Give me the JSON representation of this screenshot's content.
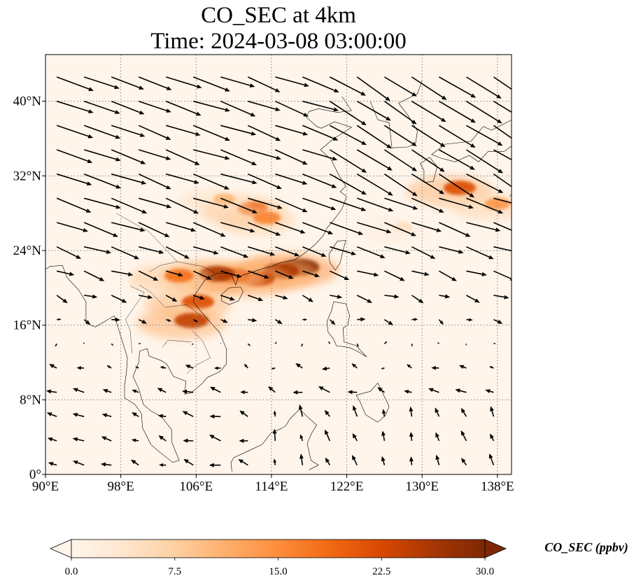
{
  "title": {
    "line1": "CO_SEC at 4km",
    "line2": "Time: 2024-03-08 03:00:00"
  },
  "map": {
    "lon_range": [
      90,
      139.5
    ],
    "lat_range": [
      0,
      45
    ],
    "gridlines": true,
    "lon_ticks": [
      {
        "value": 90,
        "label": "90°E"
      },
      {
        "value": 98,
        "label": "98°E"
      },
      {
        "value": 106,
        "label": "106°E"
      },
      {
        "value": 114,
        "label": "114°E"
      },
      {
        "value": 122,
        "label": "122°E"
      },
      {
        "value": 130,
        "label": "130°E"
      },
      {
        "value": 138,
        "label": "138°E"
      }
    ],
    "lat_ticks": [
      {
        "value": 0,
        "label": "0°"
      },
      {
        "value": 8,
        "label": "8°N"
      },
      {
        "value": 16,
        "label": "16°N"
      },
      {
        "value": 24,
        "label": "24°N"
      },
      {
        "value": 32,
        "label": "32°N"
      },
      {
        "value": 40,
        "label": "40°N"
      }
    ],
    "background_color": "#fff5eb",
    "plumes": [
      {
        "lon": 117.0,
        "lat": 22.2,
        "value": 30
      },
      {
        "lon": 115.0,
        "lat": 21.8,
        "value": 26
      },
      {
        "lon": 112.5,
        "lat": 21.0,
        "value": 24
      },
      {
        "lon": 110.0,
        "lat": 21.3,
        "value": 22
      },
      {
        "lon": 108.2,
        "lat": 21.5,
        "value": 26
      },
      {
        "lon": 106.2,
        "lat": 18.5,
        "value": 22
      },
      {
        "lon": 105.5,
        "lat": 16.5,
        "value": 24
      },
      {
        "lon": 104.2,
        "lat": 21.3,
        "value": 18
      },
      {
        "lon": 112.0,
        "lat": 28.5,
        "value": 20
      },
      {
        "lon": 113.5,
        "lat": 27.5,
        "value": 16
      },
      {
        "lon": 109.0,
        "lat": 29.5,
        "value": 10
      },
      {
        "lon": 134.0,
        "lat": 30.7,
        "value": 22
      },
      {
        "lon": 138.0,
        "lat": 29.0,
        "value": 14
      },
      {
        "lon": 128.0,
        "lat": 26.5,
        "value": 5
      }
    ],
    "wind_field": {
      "description_units": "vectors",
      "north_u": 4.5,
      "north_v": -1.6,
      "south_u": -1.2,
      "south_v": 0.4
    }
  },
  "colorbar": {
    "label": "CO_SEC (ppbv)",
    "min": 0.0,
    "max": 30.0,
    "extend": "both",
    "ticks": [
      "0.0",
      "7.5",
      "15.0",
      "22.5",
      "30.0"
    ],
    "colormap": [
      "#fff5eb",
      "#fee6ce",
      "#fdd0a2",
      "#fdae6b",
      "#fd8d3c",
      "#f16913",
      "#d94801",
      "#a63603",
      "#7f2704"
    ]
  }
}
